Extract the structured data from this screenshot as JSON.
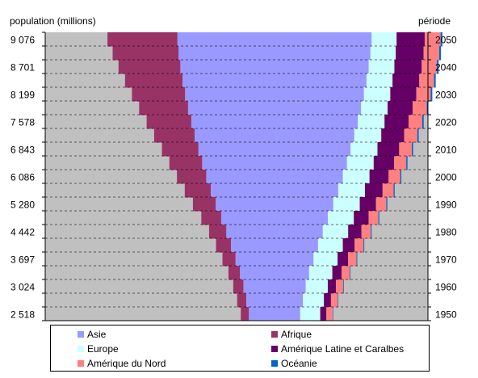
{
  "chart_data": {
    "type": "area",
    "title": "",
    "ylabel_left": "population (millions)",
    "ylabel_right": "période",
    "left_ticks": [
      "9 076",
      "8 701",
      "8 199",
      "7 578",
      "6 843",
      "6 086",
      "5 280",
      "4 442",
      "3 697",
      "3 024",
      "2 518"
    ],
    "right_ticks": [
      "2050",
      "2040",
      "2030",
      "2020",
      "2010",
      "2000",
      "1990",
      "1980",
      "1970",
      "1960",
      "1950"
    ],
    "years": [
      1950,
      1955,
      1960,
      1965,
      1970,
      1975,
      1980,
      1985,
      1990,
      1995,
      2000,
      2005,
      2010,
      2015,
      2020,
      2025,
      2030,
      2035,
      2040,
      2045,
      2050
    ],
    "series": [
      {
        "name": "Asie",
        "color": "#9999ff",
        "values": [
          1395,
          1540,
          1694,
          1880,
          2121,
          2368,
          2624,
          2904,
          3198,
          3467,
          3717,
          3939,
          4140,
          4342,
          4530,
          4707,
          4867,
          5007,
          5126,
          5219,
          5282
        ]
      },
      {
        "name": "Afrique",
        "color": "#993366",
        "values": [
          221,
          247,
          277,
          314,
          357,
          408,
          470,
          541,
          622,
          710,
          797,
          893,
          994,
          1106,
          1216,
          1331,
          1448,
          1566,
          1683,
          1797,
          1906
        ]
      },
      {
        "name": "Europe",
        "color": "#ccffff",
        "values": [
          547,
          575,
          603,
          634,
          656,
          675,
          693,
          706,
          721,
          727,
          727,
          730,
          732,
          735,
          730,
          725,
          718,
          709,
          700,
          691,
          682
        ]
      },
      {
        "name": "Amérique Latine et Caraïbes",
        "color": "#660066",
        "values": [
          167,
          191,
          220,
          253,
          284,
          321,
          361,
          402,
          442,
          481,
          520,
          557,
          590,
          623,
          654,
          682,
          706,
          726,
          743,
          756,
          764
        ]
      },
      {
        "name": "Amérique du Nord",
        "color": "#ff8080",
        "values": [
          172,
          187,
          204,
          219,
          231,
          242,
          254,
          267,
          282,
          299,
          316,
          330,
          345,
          358,
          371,
          383,
          393,
          403,
          413,
          423,
          432
        ]
      },
      {
        "name": "Océanie",
        "color": "#0066cc",
        "values": [
          13,
          14,
          16,
          18,
          20,
          21,
          23,
          25,
          27,
          29,
          31,
          33,
          35,
          38,
          40,
          42,
          44,
          46,
          48,
          50,
          51
        ]
      }
    ]
  },
  "legend": {
    "asie": "Asie",
    "afrique": "Afrique",
    "europe": "Europe",
    "amlat": "Amérique Latine et Caralbes",
    "amnord": "Amérique du Nord",
    "oceanie": "Océanie"
  }
}
